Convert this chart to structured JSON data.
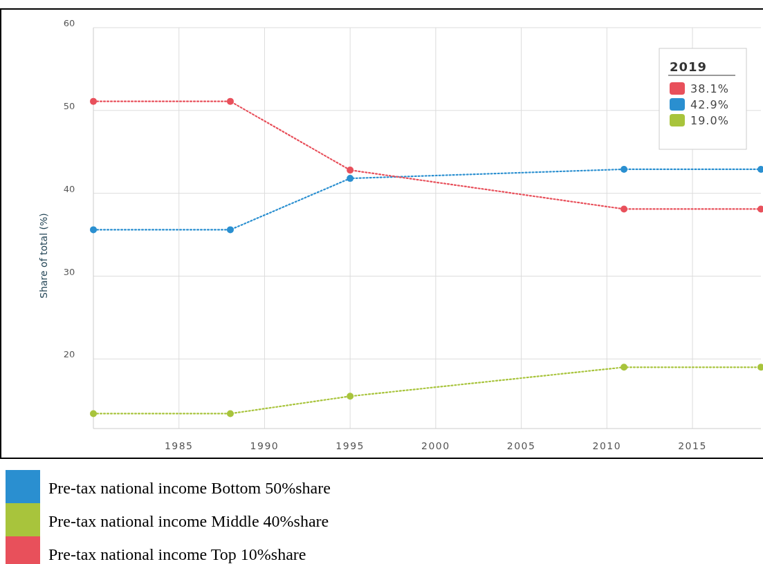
{
  "chart_data": {
    "type": "line",
    "ylabel": "Share of total (%)",
    "legend_title": "2019",
    "xlim": [
      1980,
      2019
    ],
    "xticks": [
      1985,
      1990,
      1995,
      2000,
      2005,
      2010,
      2015
    ],
    "ylim": [
      11.6,
      60
    ],
    "yticks": [
      20,
      30,
      40,
      50,
      60
    ],
    "grid": true,
    "legend": "bottom",
    "marker": "circle",
    "line_style": "dotted",
    "series": [
      {
        "name": "Pre-tax national income Bottom 50%share",
        "color": "#2a8fd0",
        "x": [
          1980,
          1988,
          1995,
          2011,
          2019
        ],
        "values": [
          35.6,
          35.6,
          41.8,
          42.9,
          42.9
        ]
      },
      {
        "name": "Pre-tax national income Middle 40%share",
        "color": "#a8c43c",
        "x": [
          1980,
          1988,
          1995,
          2011,
          2019
        ],
        "values": [
          13.4,
          13.4,
          15.5,
          19.0,
          19.0
        ]
      },
      {
        "name": "Pre-tax national income Top 10%share",
        "color": "#e8505b",
        "x": [
          1980,
          1988,
          1995,
          2011,
          2019
        ],
        "values": [
          51.1,
          51.1,
          42.8,
          38.1,
          38.1
        ]
      }
    ],
    "annotations": [
      "38.1%",
      "42.9%",
      "19.0%"
    ]
  }
}
